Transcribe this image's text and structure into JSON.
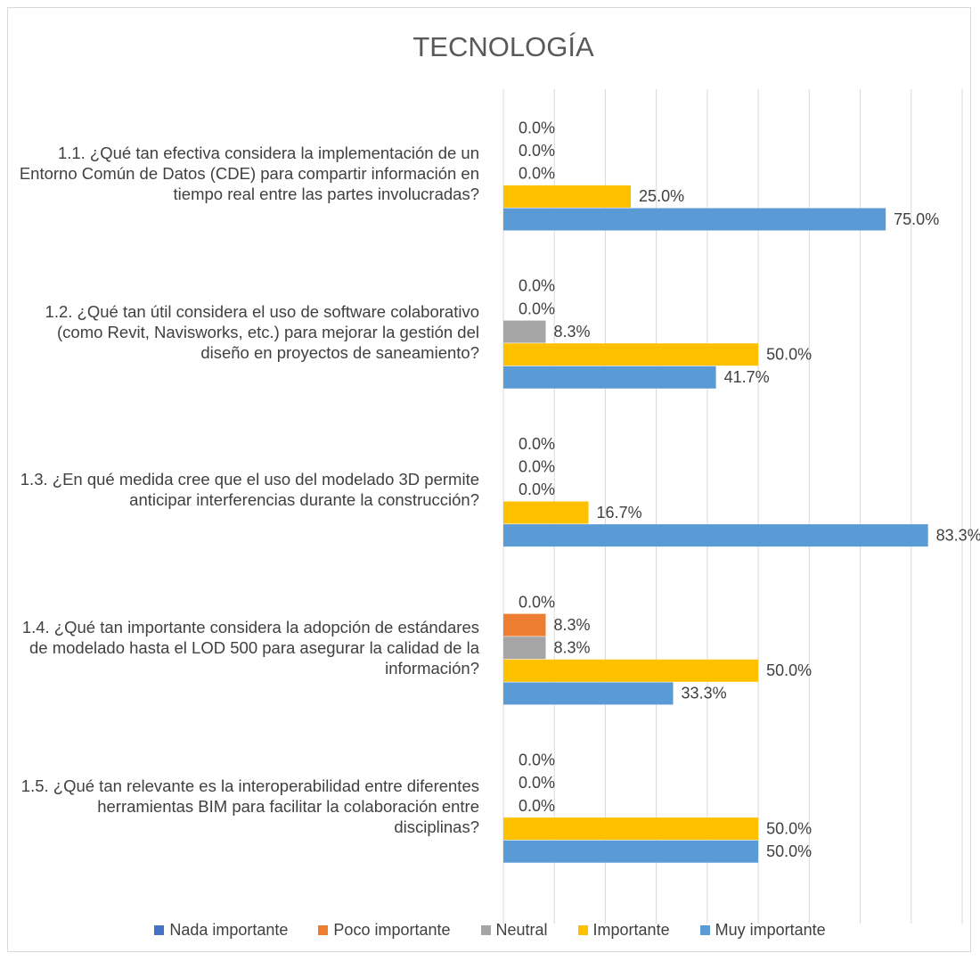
{
  "chart_data": {
    "type": "bar",
    "orientation": "horizontal",
    "title": "TECNOLOGÍA",
    "categories": [
      "1.1. ¿Qué tan efectiva considera la implementación de un Entorno Común de Datos (CDE) para compartir información en tiempo real entre las partes involucradas?",
      "1.2. ¿Qué tan útil considera el uso de software colaborativo (como Revit, Navisworks, etc.) para mejorar la gestión del diseño en proyectos de saneamiento?",
      "1.3. ¿En qué medida cree que el uso del modelado 3D permite anticipar interferencias durante la construcción?",
      "1.4. ¿Qué tan importante considera la adopción de estándares de modelado hasta el LOD 500 para asegurar la calidad de la información?",
      "1.5. ¿Qué tan relevante es la interoperabilidad entre diferentes herramientas BIM para facilitar la colaboración entre disciplinas?"
    ],
    "series": [
      {
        "name": "Nada importante",
        "color": "#4472c4",
        "values": [
          0,
          0,
          0,
          0,
          0
        ],
        "value_labels": [
          "0.0%",
          "0.0%",
          "0.0%",
          "0.0%",
          "0.0%"
        ]
      },
      {
        "name": "Poco importante",
        "color": "#ed7d31",
        "values": [
          0,
          0,
          0,
          8.3,
          0
        ],
        "value_labels": [
          "0.0%",
          "0.0%",
          "0.0%",
          "8.3%",
          "0.0%"
        ]
      },
      {
        "name": "Neutral",
        "color": "#a5a5a5",
        "values": [
          0,
          8.3,
          0,
          8.3,
          0
        ],
        "value_labels": [
          "0.0%",
          "8.3%",
          "0.0%",
          "8.3%",
          "0.0%"
        ]
      },
      {
        "name": "Importante",
        "color": "#ffc000",
        "values": [
          25,
          50,
          16.7,
          50,
          50
        ],
        "value_labels": [
          "25.0%",
          "50.0%",
          "16.7%",
          "50.0%",
          "50.0%"
        ]
      },
      {
        "name": "Muy importante",
        "color": "#5b9bd5",
        "values": [
          75,
          41.7,
          83.3,
          33.3,
          50
        ],
        "value_labels": [
          "75.0%",
          "41.7%",
          "83.3%",
          "33.3%",
          "50.0%"
        ]
      }
    ],
    "xlim": [
      0,
      90
    ],
    "xticks": [
      0,
      10,
      20,
      30,
      40,
      50,
      60,
      70,
      80,
      90
    ],
    "grid": true,
    "legend": "bottom"
  }
}
